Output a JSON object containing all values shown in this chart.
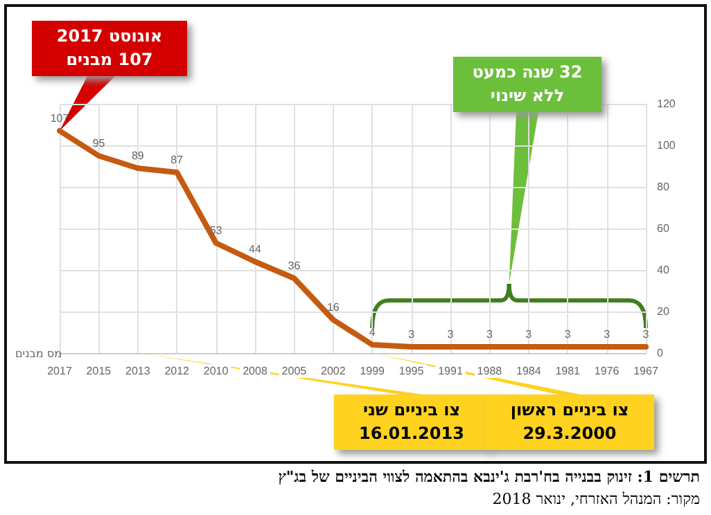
{
  "chart_data": {
    "type": "line",
    "title": "תרשים 1: זינוק בבנייה בח'רבת ג'ינבא בהתאמה לצווי הביניים של בג\"ץ",
    "ylabel": "מס מבנים",
    "categories": [
      "2017",
      "2015",
      "2013",
      "2012",
      "2010",
      "2008",
      "2005",
      "2002",
      "1999",
      "1995",
      "1991",
      "1988",
      "1984",
      "1981",
      "1976",
      "1967"
    ],
    "values": [
      107,
      95,
      89,
      87,
      53,
      44,
      36,
      16,
      4,
      3,
      3,
      3,
      3,
      3,
      3,
      3
    ],
    "color": "#c55a11",
    "ylim": [
      0,
      120
    ],
    "yticks": [
      0,
      20,
      40,
      60,
      80,
      100,
      120
    ],
    "grid": true,
    "data_labels": true,
    "marker": "none",
    "annotations": [
      "אוגוסט 2017\n107 מבנים",
      "32 שנה כמעט\nללא שינוי",
      "צו ביניים שני\n16.01.2013",
      "צו ביניים ראשון\n29.3.2000",
      "מקור: המנהל האזרחי, ינואר 2018"
    ]
  }
}
